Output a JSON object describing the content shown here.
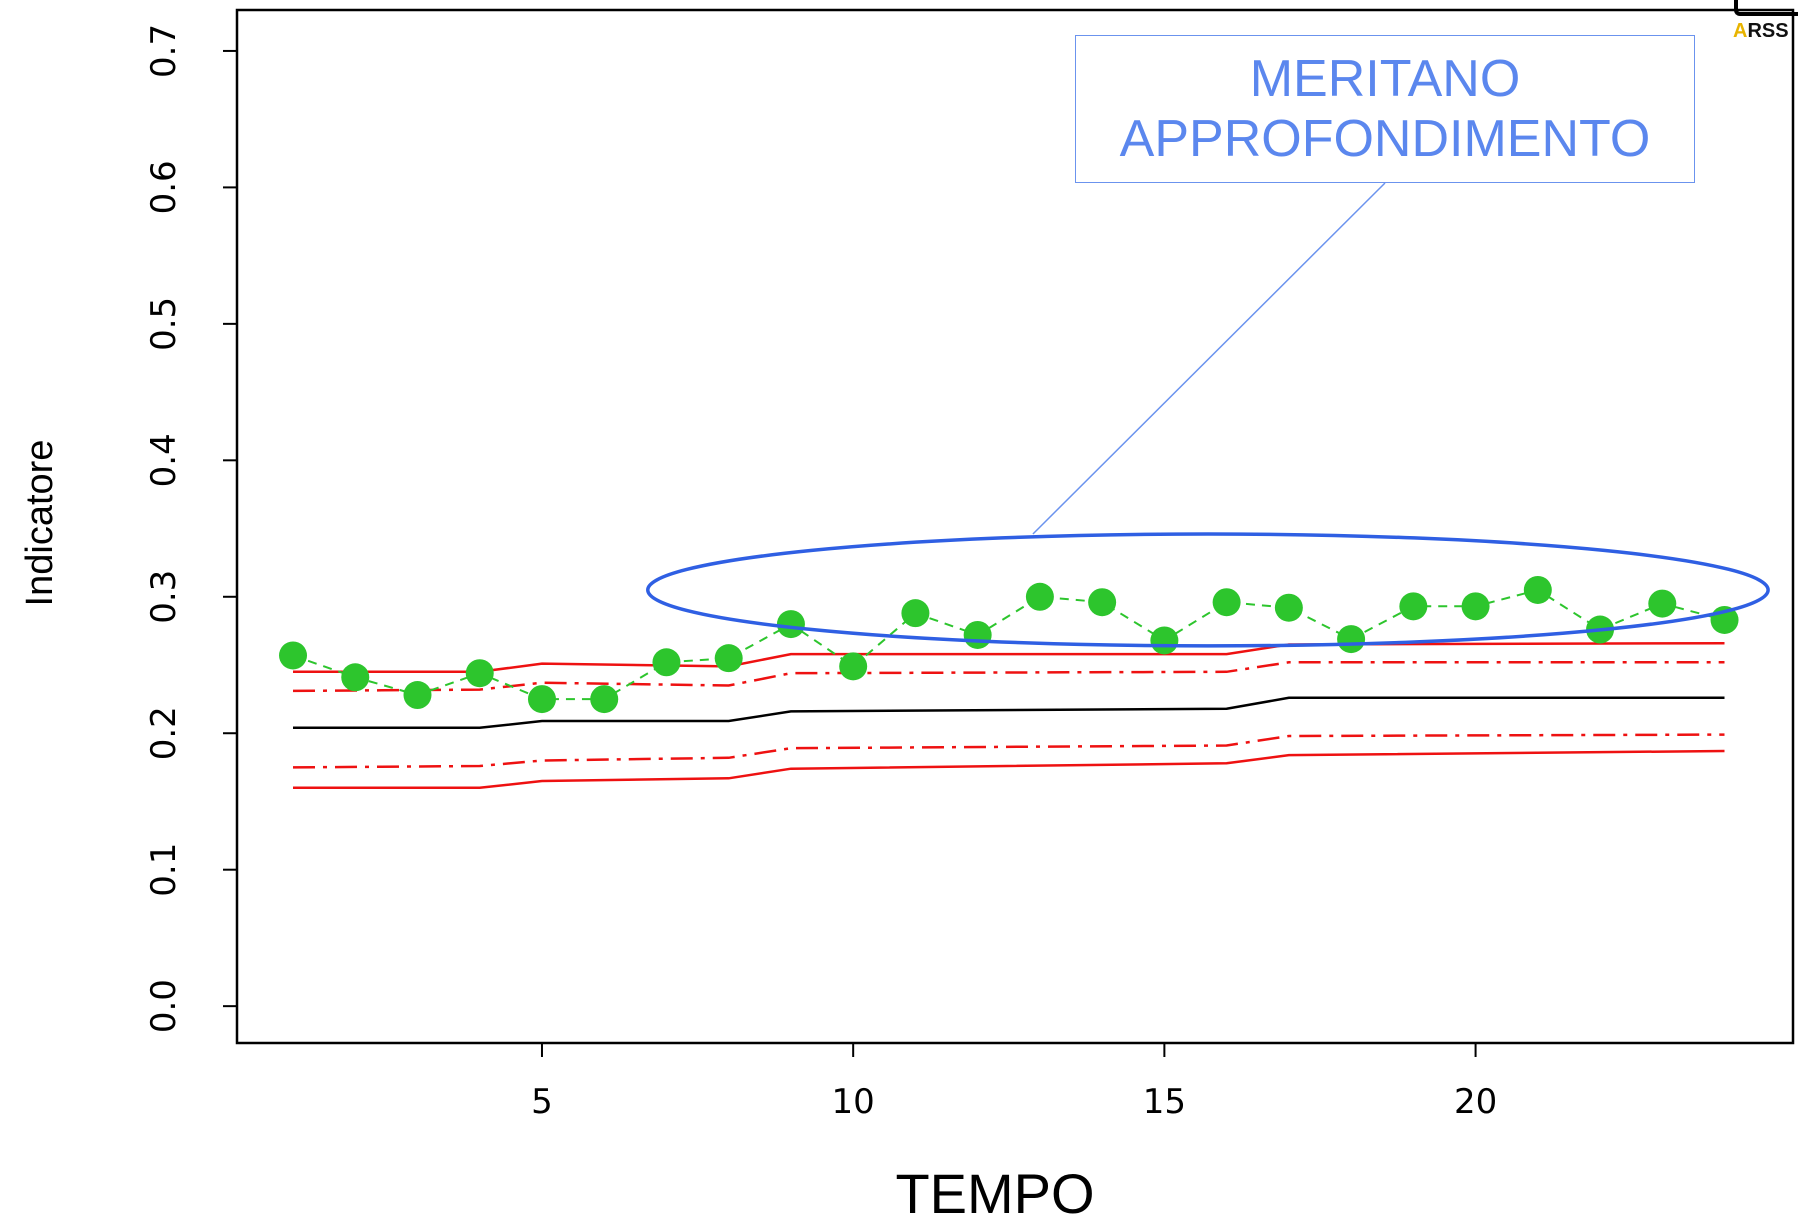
{
  "chart_data": {
    "type": "line",
    "xlabel": "TEMPO",
    "ylabel": "Indicatore",
    "xlim": [
      0.1,
      25.1
    ],
    "ylim": [
      -0.027,
      0.73
    ],
    "x_ticks": [
      5,
      10,
      15,
      20
    ],
    "y_ticks": [
      "0.0",
      "0.1",
      "0.2",
      "0.3",
      "0.4",
      "0.5",
      "0.6",
      "0.7"
    ],
    "grid": false,
    "series": [
      {
        "kind": "points",
        "color": "#2dc52d",
        "x": [
          1,
          2,
          3,
          4,
          5,
          6,
          7,
          8,
          9,
          10,
          11,
          12,
          13,
          14,
          15,
          16,
          17,
          18,
          19,
          20,
          21,
          22,
          23,
          24
        ],
        "values": [
          0.257,
          0.241,
          0.228,
          0.244,
          0.225,
          0.225,
          0.252,
          0.255,
          0.28,
          0.249,
          0.288,
          0.272,
          0.3,
          0.296,
          0.268,
          0.296,
          0.292,
          0.269,
          0.293,
          0.293,
          0.305,
          0.276,
          0.295,
          0.283
        ]
      },
      {
        "kind": "center",
        "color": "#000000",
        "x": [
          1,
          4,
          5,
          8,
          9,
          16,
          17,
          24
        ],
        "values": [
          0.204,
          0.204,
          0.209,
          0.209,
          0.216,
          0.218,
          0.226,
          0.226
        ]
      },
      {
        "kind": "upper-outer",
        "color": "#ee1111",
        "x": [
          1,
          4,
          5,
          8,
          9,
          16,
          17,
          24
        ],
        "values": [
          0.245,
          0.245,
          0.251,
          0.249,
          0.258,
          0.258,
          0.265,
          0.266
        ]
      },
      {
        "kind": "upper-inner",
        "color": "#ee1111",
        "x": [
          1,
          4,
          5,
          8,
          9,
          16,
          17,
          24
        ],
        "values": [
          0.231,
          0.232,
          0.237,
          0.235,
          0.244,
          0.245,
          0.252,
          0.252
        ]
      },
      {
        "kind": "lower-inner",
        "color": "#ee1111",
        "x": [
          1,
          4,
          5,
          8,
          9,
          16,
          17,
          24
        ],
        "values": [
          0.175,
          0.176,
          0.18,
          0.182,
          0.189,
          0.191,
          0.198,
          0.199
        ]
      },
      {
        "kind": "lower-outer",
        "color": "#ee1111",
        "x": [
          1,
          4,
          5,
          8,
          9,
          16,
          17,
          24
        ],
        "values": [
          0.16,
          0.16,
          0.165,
          0.167,
          0.174,
          0.178,
          0.184,
          0.187
        ]
      }
    ],
    "annotation": {
      "lines": [
        "MERITANO",
        "APPROFONDIMENTO"
      ],
      "color": "#5b87ee",
      "ellipse_color": "#2f5fe3",
      "ellipse_x_range": [
        6.7,
        24.7
      ],
      "ellipse_y_range": [
        0.264,
        0.346
      ]
    }
  },
  "logo": {
    "text_accent": "A",
    "text_rest": "RSS"
  }
}
